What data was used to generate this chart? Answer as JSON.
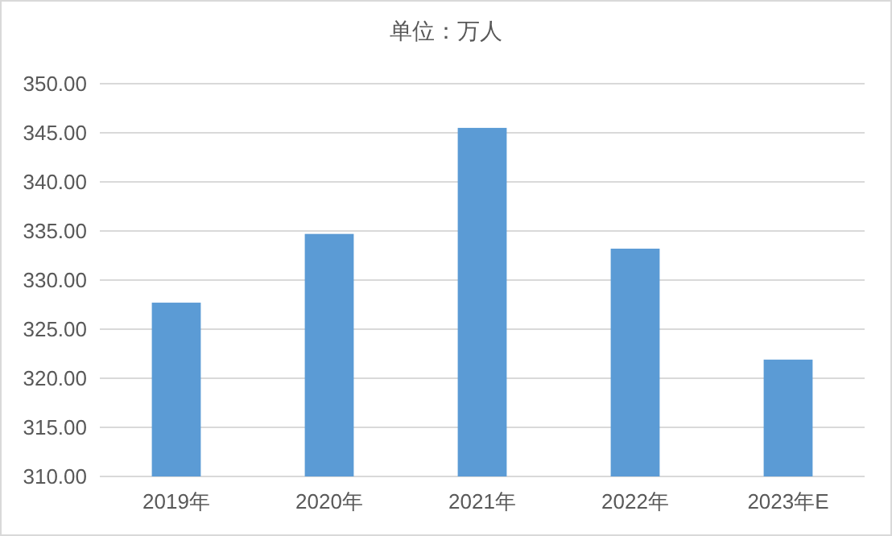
{
  "chart_data": {
    "type": "bar",
    "title": "单位：万人",
    "categories": [
      "2019年",
      "2020年",
      "2021年",
      "2022年",
      "2023年E"
    ],
    "values": [
      327.7,
      334.7,
      345.5,
      333.2,
      321.9
    ],
    "color": "#5b9bd5",
    "ylim": [
      310,
      350
    ],
    "yticks": [
      {
        "value": 310,
        "label": "310.00"
      },
      {
        "value": 315,
        "label": "315.00"
      },
      {
        "value": 320,
        "label": "320.00"
      },
      {
        "value": 325,
        "label": "325.00"
      },
      {
        "value": 330,
        "label": "330.00"
      },
      {
        "value": 335,
        "label": "335.00"
      },
      {
        "value": 340,
        "label": "340.00"
      },
      {
        "value": 345,
        "label": "345.00"
      },
      {
        "value": 350,
        "label": "350.00"
      }
    ],
    "grid": "y"
  }
}
